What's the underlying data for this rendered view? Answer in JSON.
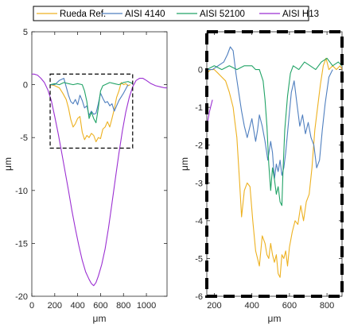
{
  "colors": {
    "rueda": "#edb120",
    "aisi4140": "#4f7fbf",
    "aisi52100": "#21a366",
    "aisih13": "#9b2fd2"
  },
  "legend": {
    "placement": "top",
    "items": [
      {
        "key": "rueda",
        "label": "Rueda Ref."
      },
      {
        "key": "aisi4140",
        "label": "AISI 4140"
      },
      {
        "key": "aisi52100",
        "label": "AISI 52100"
      },
      {
        "key": "aisih13",
        "label": "AISI H13"
      }
    ]
  },
  "chart_data": [
    {
      "type": "line",
      "panel": "left",
      "xlabel": "μm",
      "ylabel": "μm",
      "xlim": [
        0,
        1180
      ],
      "ylim": [
        -20,
        5
      ],
      "xticks": [
        0,
        200,
        400,
        600,
        800,
        1000
      ],
      "yticks": [
        5,
        0,
        -5,
        -10,
        -15,
        -20
      ],
      "zoom_box": {
        "x": [
          160,
          880
        ],
        "y": [
          -6,
          1
        ]
      },
      "series": [
        {
          "key": "aisih13",
          "name": "AISI H13",
          "x": [
            0,
            20,
            50,
            80,
            110,
            140,
            170,
            200,
            230,
            260,
            290,
            320,
            350,
            380,
            410,
            440,
            470,
            500,
            520,
            540,
            560,
            580,
            610,
            640,
            670,
            700,
            730,
            760,
            790,
            820,
            850,
            880,
            910,
            940,
            970,
            1000,
            1040,
            1080,
            1120,
            1160,
            1180
          ],
          "y": [
            1,
            1,
            0.9,
            0.6,
            0.2,
            -0.5,
            -1.5,
            -3.0,
            -4.6,
            -6.4,
            -8.2,
            -10.0,
            -11.9,
            -13.6,
            -15.2,
            -16.6,
            -17.7,
            -18.4,
            -18.8,
            -19.0,
            -18.7,
            -18.1,
            -17.0,
            -15.5,
            -13.5,
            -11.2,
            -8.8,
            -6.5,
            -4.4,
            -2.6,
            -1.2,
            -0.2,
            0.4,
            0.6,
            0.6,
            0.4,
            0.1,
            -0.1,
            -0.2,
            -0.3,
            -0.3
          ]
        },
        {
          "key": "rueda",
          "name": "Rueda Ref.",
          "x": [
            160,
            200,
            240,
            270,
            300,
            320,
            340,
            360,
            380,
            400,
            420,
            440,
            460,
            480,
            500,
            520,
            540,
            560,
            580,
            600,
            620,
            640,
            660,
            680,
            700,
            720,
            740,
            760,
            780,
            800,
            820,
            840,
            860
          ],
          "y": [
            0.0,
            -0.1,
            -0.3,
            -0.8,
            -1.4,
            -2.2,
            -3.3,
            -4.0,
            -3.7,
            -3.2,
            -3.0,
            -4.5,
            -5.2,
            -4.8,
            -5.0,
            -4.6,
            -4.8,
            -5.4,
            -5.0,
            -5.1,
            -4.2,
            -4.0,
            -3.5,
            -4.0,
            -3.2,
            -2.3,
            -1.2,
            -0.6,
            0.2,
            0.0,
            0.1,
            -0.1,
            0.0
          ]
        },
        {
          "key": "aisi4140",
          "name": "AISI 4140",
          "x": [
            160,
            200,
            240,
            280,
            300,
            320,
            340,
            360,
            380,
            400,
            420,
            440,
            460,
            480,
            500,
            520,
            540,
            560,
            580,
            600,
            620,
            640,
            660,
            680,
            700,
            720,
            760,
            800,
            840
          ],
          "y": [
            0.0,
            0.0,
            0.4,
            0.6,
            -0.2,
            -1.0,
            -1.6,
            -1.8,
            -1.4,
            -1.9,
            -1.0,
            -1.5,
            -2.2,
            -2.0,
            -2.9,
            -2.5,
            -2.8,
            -2.7,
            -1.8,
            -0.8,
            -1.3,
            -1.7,
            -1.6,
            -2.0,
            -1.8,
            -2.5,
            -1.5,
            -0.8,
            0.0
          ]
        },
        {
          "key": "aisi52100",
          "name": "AISI 52100",
          "x": [
            160,
            200,
            240,
            280,
            320,
            360,
            400,
            440,
            460,
            480,
            500,
            520,
            540,
            560,
            580,
            600,
            620,
            640,
            680,
            720,
            760,
            800,
            840,
            880
          ],
          "y": [
            0.0,
            0.1,
            0.0,
            0.2,
            0.1,
            0.0,
            0.1,
            0.0,
            -0.6,
            -1.6,
            -3.2,
            -2.6,
            -3.2,
            -3.6,
            -2.2,
            -0.6,
            -0.1,
            0.0,
            0.2,
            0.1,
            0.0,
            0.2,
            0.3,
            0.1
          ]
        }
      ]
    },
    {
      "type": "line",
      "panel": "right",
      "xlabel": "μm",
      "ylabel": "μm",
      "xlim": [
        160,
        880
      ],
      "ylim": [
        -6,
        1
      ],
      "xticks": [
        200,
        400,
        600,
        800
      ],
      "yticks": [
        0,
        -1,
        -2,
        -3,
        -4,
        -5,
        -6
      ],
      "series": [
        {
          "key": "aisih13",
          "name": "AISI H13",
          "x": [
            160,
            175,
            190
          ],
          "y": [
            -1.5,
            -1.1,
            -0.8
          ]
        },
        {
          "key": "rueda",
          "name": "Rueda Ref.",
          "x": [
            160,
            180,
            200,
            220,
            240,
            260,
            280,
            300,
            310,
            320,
            335,
            345,
            360,
            375,
            390,
            405,
            420,
            440,
            455,
            470,
            480,
            490,
            500,
            510,
            520,
            530,
            540,
            550,
            560,
            570,
            580,
            590,
            600,
            615,
            630,
            645,
            660,
            675,
            690,
            705,
            720,
            735,
            750,
            765,
            780,
            795,
            810,
            830,
            850,
            870,
            880
          ],
          "y": [
            -0.1,
            0.0,
            0.0,
            -0.1,
            -0.2,
            -0.3,
            -0.6,
            -1.0,
            -1.4,
            -1.8,
            -3.0,
            -3.9,
            -3.2,
            -3.0,
            -3.1,
            -4.0,
            -4.8,
            -5.2,
            -4.4,
            -4.6,
            -4.9,
            -5.0,
            -4.6,
            -4.9,
            -5.1,
            -4.9,
            -5.4,
            -5.5,
            -4.9,
            -5.0,
            -4.8,
            -5.2,
            -4.7,
            -4.3,
            -4.0,
            -4.1,
            -3.6,
            -4.0,
            -3.5,
            -3.3,
            -2.6,
            -1.6,
            -1.0,
            -0.4,
            0.1,
            0.3,
            0.0,
            0.1,
            0.0,
            0.1,
            0.0
          ]
        },
        {
          "key": "aisi4140",
          "name": "AISI 4140",
          "x": [
            160,
            190,
            220,
            250,
            270,
            285,
            300,
            315,
            330,
            345,
            360,
            375,
            390,
            400,
            410,
            420,
            430,
            440,
            455,
            470,
            485,
            500,
            510,
            520,
            530,
            540,
            550,
            560,
            570,
            580,
            595,
            610,
            625,
            640,
            655,
            670,
            685,
            700,
            715,
            730,
            745,
            760,
            775,
            790,
            810,
            830
          ],
          "y": [
            0.0,
            0.0,
            0.1,
            0.2,
            0.4,
            0.6,
            0.5,
            -0.1,
            -0.6,
            -1.1,
            -1.5,
            -1.8,
            -1.5,
            -1.3,
            -1.6,
            -1.9,
            -1.6,
            -1.2,
            -1.5,
            -1.9,
            -2.4,
            -1.9,
            -2.2,
            -2.9,
            -2.5,
            -2.7,
            -2.4,
            -2.8,
            -2.6,
            -2.2,
            -1.4,
            -0.6,
            -0.3,
            -0.9,
            -1.5,
            -1.2,
            -1.7,
            -1.4,
            -1.8,
            -2.0,
            -2.6,
            -2.4,
            -1.6,
            -0.9,
            -0.2,
            0.0
          ]
        },
        {
          "key": "aisi52100",
          "name": "AISI 52100",
          "x": [
            160,
            200,
            240,
            280,
            320,
            360,
            400,
            420,
            440,
            460,
            470,
            480,
            490,
            500,
            510,
            520,
            530,
            540,
            550,
            560,
            565,
            575,
            590,
            605,
            620,
            650,
            680,
            710,
            740,
            770,
            800,
            830,
            860,
            880
          ],
          "y": [
            0.0,
            0.1,
            0.0,
            0.1,
            0.0,
            0.1,
            0.1,
            0.0,
            0.0,
            -0.3,
            -0.8,
            -1.5,
            -2.5,
            -3.2,
            -2.6,
            -2.9,
            -3.3,
            -3.1,
            -3.5,
            -3.6,
            -2.8,
            -1.6,
            -0.7,
            -0.1,
            0.1,
            0.0,
            0.2,
            0.1,
            0.0,
            0.2,
            0.3,
            0.1,
            0.2,
            0.1
          ]
        }
      ]
    }
  ]
}
